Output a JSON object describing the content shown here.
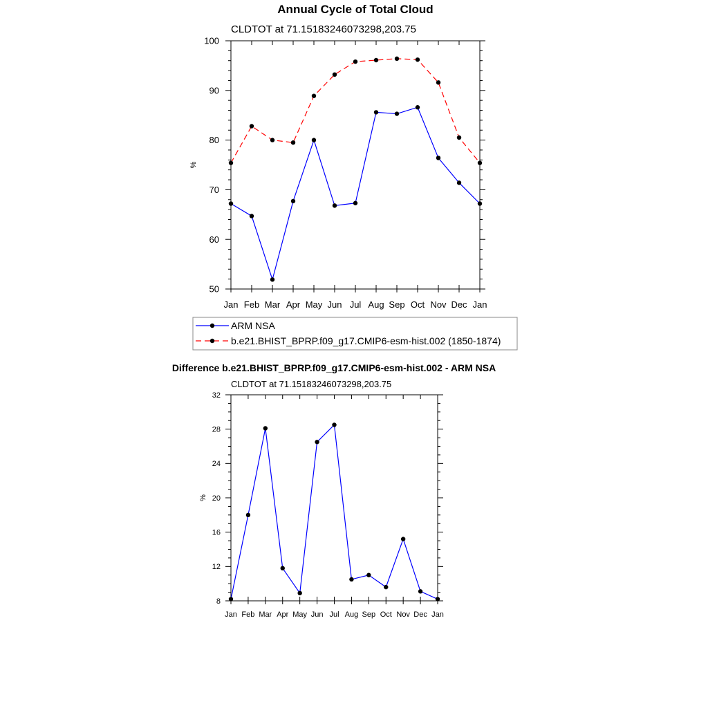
{
  "figure": {
    "title": "Annual Cycle of Total Cloud"
  },
  "chart_data": [
    {
      "type": "line",
      "title": "",
      "subtitle": "CLDTOT at 71.15183246073298,203.75",
      "xlabel": "",
      "ylabel": "%",
      "categories": [
        "Jan",
        "Feb",
        "Mar",
        "Apr",
        "May",
        "Jun",
        "Jul",
        "Aug",
        "Sep",
        "Oct",
        "Nov",
        "Dec",
        "Jan"
      ],
      "ylim": [
        50,
        100
      ],
      "yticks": [
        "50",
        "60",
        "70",
        "80",
        "90",
        "100"
      ],
      "ytick_values": [
        50,
        60,
        70,
        80,
        90,
        100
      ],
      "series": [
        {
          "name": "ARM NSA",
          "color": "#0000ff",
          "dash": "solid",
          "values": [
            67.2,
            64.7,
            51.9,
            67.7,
            80.0,
            66.8,
            67.3,
            85.6,
            85.3,
            86.6,
            76.4,
            71.4,
            67.2
          ]
        },
        {
          "name": "b.e21.BHIST_BPRP.f09_g17.CMIP6-esm-hist.002 (1850-1874)",
          "color": "#ff0000",
          "dash": "dashed",
          "values": [
            75.4,
            82.8,
            80.0,
            79.5,
            88.9,
            93.2,
            95.8,
            96.1,
            96.4,
            96.2,
            91.6,
            80.5,
            75.4
          ]
        }
      ],
      "legend": {
        "entries": [
          "ARM NSA",
          "b.e21.BHIST_BPRP.f09_g17.CMIP6-esm-hist.002 (1850-1874)"
        ],
        "placement": "below"
      }
    },
    {
      "type": "line",
      "title": "Difference b.e21.BHIST_BPRP.f09_g17.CMIP6-esm-hist.002 - ARM NSA",
      "subtitle": "CLDTOT at 71.15183246073298,203.75",
      "xlabel": "",
      "ylabel": "%",
      "categories": [
        "Jan",
        "Feb",
        "Mar",
        "Apr",
        "May",
        "Jun",
        "Jul",
        "Aug",
        "Sep",
        "Oct",
        "Nov",
        "Dec",
        "Jan"
      ],
      "ylim": [
        8,
        32
      ],
      "yticks": [
        "8",
        "12",
        "16",
        "20",
        "24",
        "28",
        "32"
      ],
      "ytick_values": [
        8,
        12,
        16,
        20,
        24,
        28,
        32
      ],
      "series": [
        {
          "name": "Difference",
          "color": "#0000ff",
          "dash": "solid",
          "values": [
            8.2,
            18.0,
            28.1,
            11.8,
            8.9,
            26.5,
            28.5,
            10.5,
            11.0,
            9.6,
            15.2,
            9.1,
            8.2
          ]
        }
      ]
    }
  ]
}
